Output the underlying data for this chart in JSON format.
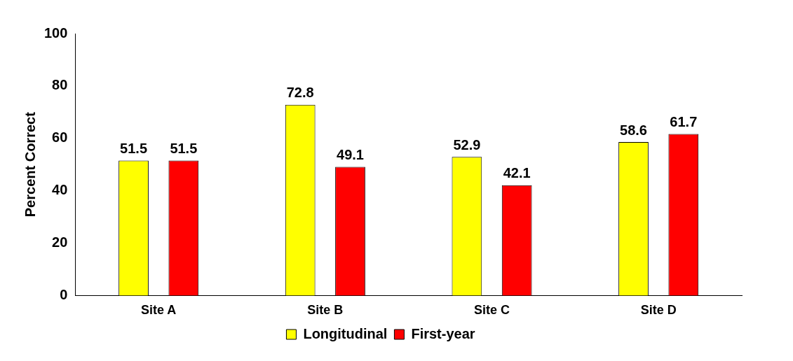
{
  "chart_data": {
    "type": "bar",
    "ylabel": "Percent Correct",
    "categories": [
      "Site A",
      "Site B",
      "Site C",
      "Site D"
    ],
    "series": [
      {
        "name": "Longitudinal",
        "color": "#ffff00",
        "values": [
          51.5,
          72.8,
          52.9,
          58.6
        ]
      },
      {
        "name": "First-year",
        "color": "#ff0000",
        "values": [
          51.5,
          49.1,
          42.1,
          61.7
        ]
      }
    ],
    "ylim": [
      0,
      100
    ],
    "yticks": [
      0,
      20,
      40,
      60,
      80,
      100
    ],
    "data_labels": true,
    "legend": "bottom",
    "grid": false
  }
}
